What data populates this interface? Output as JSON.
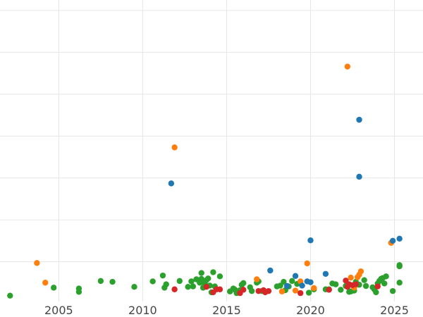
{
  "chart_data": {
    "type": "scatter",
    "title": "",
    "xlabel": "",
    "ylabel": "",
    "xlim": [
      2001.5,
      2026.7
    ],
    "ylim": [
      0,
      7.2
    ],
    "x_ticks": [
      "2005",
      "2010",
      "2015",
      "2020",
      "2025"
    ],
    "x_tick_values": [
      2005,
      2010,
      2015,
      2020,
      2025
    ],
    "y_gridlines": [
      0.95,
      1.95,
      2.95,
      3.95,
      4.95,
      5.95,
      6.95
    ],
    "grid": true,
    "legend": "none",
    "series": [
      {
        "color": "#2ca02c",
        "points": [
          [
            2002.1,
            0.14
          ],
          [
            2004.7,
            0.33
          ],
          [
            2006.2,
            0.31
          ],
          [
            2006.2,
            0.23
          ],
          [
            2007.5,
            0.49
          ],
          [
            2008.2,
            0.47
          ],
          [
            2009.5,
            0.35
          ],
          [
            2010.6,
            0.48
          ],
          [
            2011.2,
            0.62
          ],
          [
            2011.4,
            0.41
          ],
          [
            2011.3,
            0.33
          ],
          [
            2012.2,
            0.49
          ],
          [
            2012.7,
            0.35
          ],
          [
            2012.9,
            0.48
          ],
          [
            2013.0,
            0.36
          ],
          [
            2013.2,
            0.53
          ],
          [
            2013.4,
            0.45
          ],
          [
            2013.5,
            0.54
          ],
          [
            2013.5,
            0.68
          ],
          [
            2013.6,
            0.33
          ],
          [
            2013.7,
            0.43
          ],
          [
            2013.8,
            0.51
          ],
          [
            2013.9,
            0.55
          ],
          [
            2014.0,
            0.38
          ],
          [
            2014.1,
            0.22
          ],
          [
            2014.2,
            0.7
          ],
          [
            2014.3,
            0.36
          ],
          [
            2014.6,
            0.6
          ],
          [
            2015.2,
            0.24
          ],
          [
            2015.4,
            0.31
          ],
          [
            2015.5,
            0.28
          ],
          [
            2015.6,
            0.2
          ],
          [
            2015.8,
            0.27
          ],
          [
            2015.9,
            0.4
          ],
          [
            2016.0,
            0.44
          ],
          [
            2016.4,
            0.34
          ],
          [
            2016.5,
            0.25
          ],
          [
            2016.8,
            0.45
          ],
          [
            2016.9,
            0.48
          ],
          [
            2017.1,
            0.25
          ],
          [
            2018.0,
            0.36
          ],
          [
            2018.2,
            0.38
          ],
          [
            2018.4,
            0.47
          ],
          [
            2018.5,
            0.27
          ],
          [
            2018.7,
            0.36
          ],
          [
            2018.9,
            0.49
          ],
          [
            2019.2,
            0.42
          ],
          [
            2019.9,
            0.21
          ],
          [
            2020.2,
            0.29
          ],
          [
            2020.9,
            0.29
          ],
          [
            2021.1,
            0.29
          ],
          [
            2021.3,
            0.43
          ],
          [
            2021.5,
            0.41
          ],
          [
            2021.8,
            0.28
          ],
          [
            2022.1,
            0.37
          ],
          [
            2022.3,
            0.23
          ],
          [
            2022.4,
            0.24
          ],
          [
            2022.6,
            0.26
          ],
          [
            2022.6,
            0.39
          ],
          [
            2022.7,
            0.47
          ],
          [
            2022.9,
            0.4
          ],
          [
            2023.2,
            0.51
          ],
          [
            2023.3,
            0.37
          ],
          [
            2023.7,
            0.34
          ],
          [
            2023.8,
            0.29
          ],
          [
            2023.9,
            0.22
          ],
          [
            2024.0,
            0.43
          ],
          [
            2024.1,
            0.49
          ],
          [
            2024.2,
            0.54
          ],
          [
            2024.3,
            0.56
          ],
          [
            2024.4,
            0.43
          ],
          [
            2024.5,
            0.6
          ],
          [
            2024.9,
            0.25
          ],
          [
            2025.3,
            0.84
          ],
          [
            2025.3,
            0.87
          ],
          [
            2025.3,
            0.45
          ]
        ]
      },
      {
        "color": "#ff7f0e",
        "points": [
          [
            2003.7,
            0.92
          ],
          [
            2004.2,
            0.45
          ],
          [
            2011.9,
            3.68
          ],
          [
            2016.8,
            0.53
          ],
          [
            2018.3,
            0.24
          ],
          [
            2019.1,
            0.26
          ],
          [
            2019.4,
            0.48
          ],
          [
            2019.8,
            0.91
          ],
          [
            2020.2,
            0.32
          ],
          [
            2022.2,
            5.61
          ],
          [
            2022.4,
            0.57
          ],
          [
            2022.6,
            0.33
          ],
          [
            2022.8,
            0.58
          ],
          [
            2022.9,
            0.64
          ],
          [
            2023.0,
            0.72
          ],
          [
            2024.8,
            1.4
          ]
        ]
      },
      {
        "color": "#1f77b4",
        "points": [
          [
            2011.7,
            2.82
          ],
          [
            2017.6,
            0.74
          ],
          [
            2018.6,
            0.37
          ],
          [
            2019.1,
            0.61
          ],
          [
            2019.5,
            0.38
          ],
          [
            2019.8,
            0.48
          ],
          [
            2020.0,
            0.46
          ],
          [
            2020.0,
            1.46
          ],
          [
            2020.9,
            0.66
          ],
          [
            2022.9,
            4.34
          ],
          [
            2022.9,
            2.98
          ],
          [
            2024.9,
            1.45
          ],
          [
            2025.3,
            1.5
          ]
        ]
      },
      {
        "color": "#d62728",
        "points": [
          [
            2011.9,
            0.29
          ],
          [
            2013.8,
            0.35
          ],
          [
            2014.2,
            0.22
          ],
          [
            2014.4,
            0.29
          ],
          [
            2014.6,
            0.29
          ],
          [
            2015.8,
            0.2
          ],
          [
            2016.0,
            0.28
          ],
          [
            2016.9,
            0.25
          ],
          [
            2017.2,
            0.27
          ],
          [
            2017.3,
            0.22
          ],
          [
            2017.5,
            0.25
          ],
          [
            2019.4,
            0.2
          ],
          [
            2021.1,
            0.28
          ],
          [
            2022.1,
            0.5
          ],
          [
            2022.2,
            0.35
          ],
          [
            2022.3,
            0.41
          ],
          [
            2022.5,
            0.39
          ],
          [
            2022.7,
            0.41
          ],
          [
            2024.0,
            0.36
          ]
        ]
      }
    ]
  }
}
